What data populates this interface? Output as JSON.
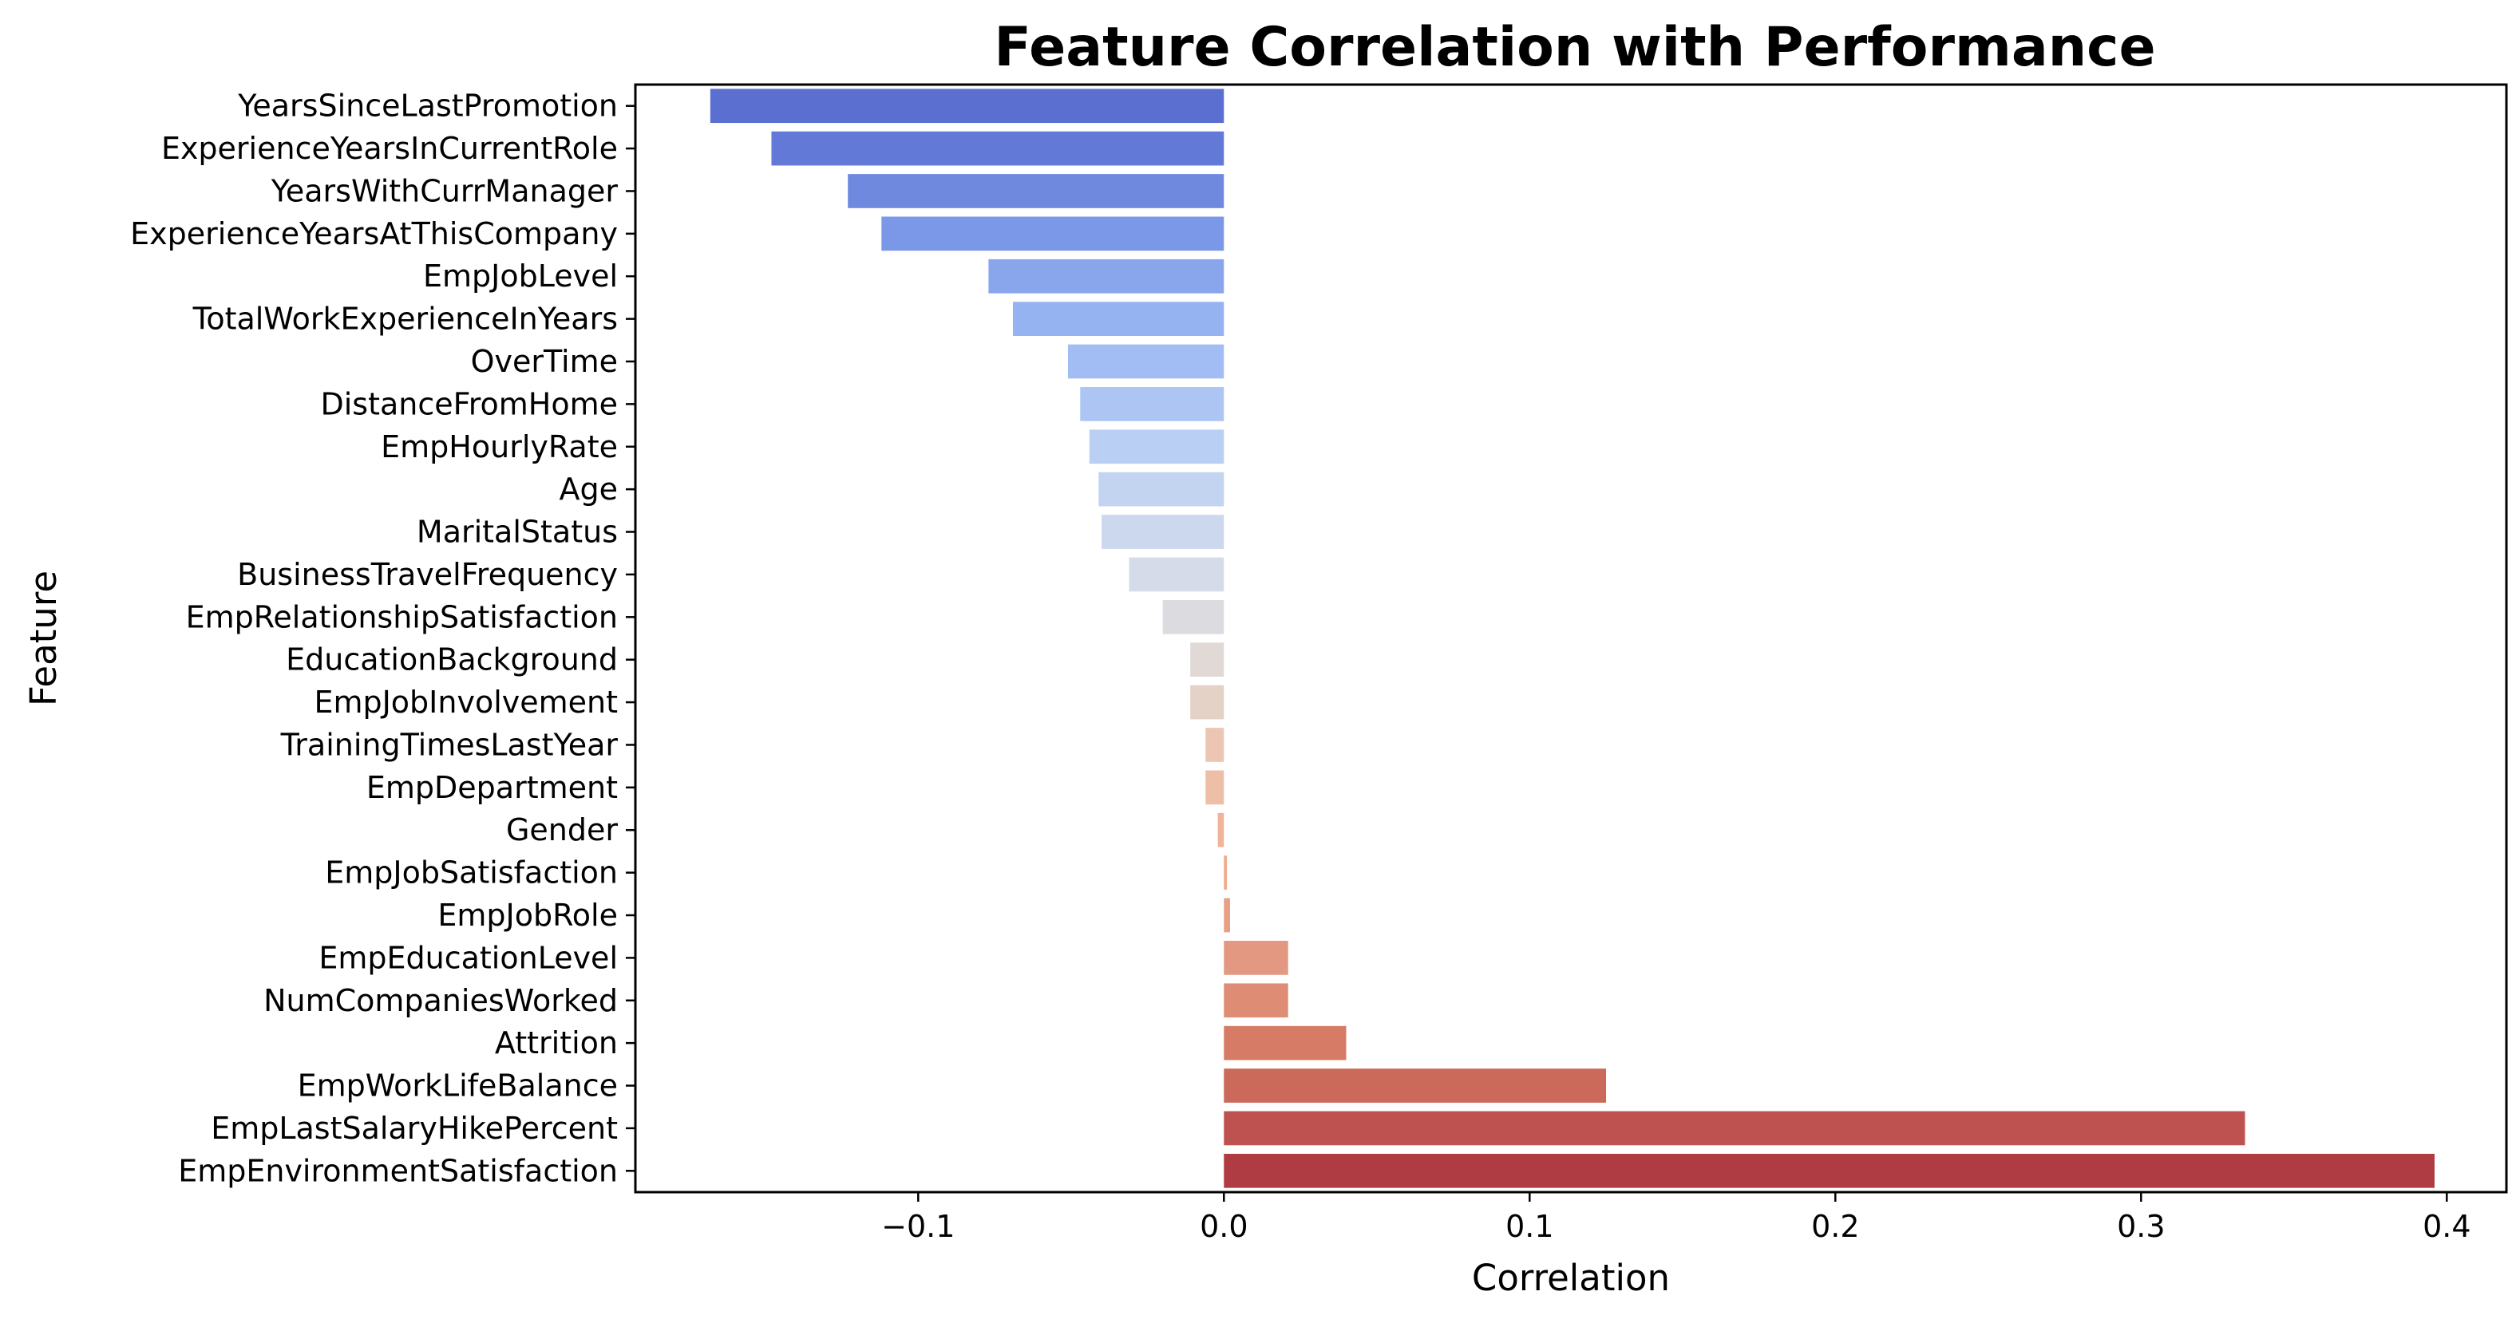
{
  "chart_data": {
    "type": "bar",
    "orientation": "horizontal",
    "title": "Feature Correlation with Performance",
    "xlabel": "Correlation",
    "ylabel": "Feature",
    "xlim": [
      -0.1925,
      0.4195
    ],
    "xticks": [
      -0.1,
      0.0,
      0.1,
      0.2,
      0.3,
      0.4
    ],
    "xtick_labels": [
      "−0.1",
      "0.0",
      "0.1",
      "0.2",
      "0.3",
      "0.4"
    ],
    "grid": false,
    "legend": "none",
    "colormap": "coolwarm",
    "categories": [
      "YearsSinceLastPromotion",
      "ExperienceYearsInCurrentRole",
      "YearsWithCurrManager",
      "ExperienceYearsAtThisCompany",
      "EmpJobLevel",
      "TotalWorkExperienceInYears",
      "OverTime",
      "DistanceFromHome",
      "EmpHourlyRate",
      "Age",
      "MaritalStatus",
      "BusinessTravelFrequency",
      "EmpRelationshipSatisfaction",
      "EducationBackground",
      "EmpJobInvolvement",
      "TrainingTimesLastYear",
      "EmpDepartment",
      "Gender",
      "EmpJobSatisfaction",
      "EmpJobRole",
      "EmpEducationLevel",
      "NumCompaniesWorked",
      "Attrition",
      "EmpWorkLifeBalance",
      "EmpLastSalaryHikePercent",
      "EmpEnvironmentSatisfaction"
    ],
    "values": [
      -0.168,
      -0.148,
      -0.123,
      -0.112,
      -0.077,
      -0.069,
      -0.051,
      -0.047,
      -0.044,
      -0.041,
      -0.04,
      -0.031,
      -0.02,
      -0.011,
      -0.011,
      -0.006,
      -0.006,
      -0.002,
      0.001,
      0.002,
      0.021,
      0.021,
      0.04,
      0.125,
      0.334,
      0.396
    ],
    "colors": [
      "#5a6fcf",
      "#6279d8",
      "#6f89df",
      "#7b97e7",
      "#89a6ed",
      "#95b2f1",
      "#a2bdf3",
      "#adc5f3",
      "#b9cff3",
      "#c3d4f0",
      "#ccd8ee",
      "#d5dbe8",
      "#dcdce0",
      "#e0d9d6",
      "#e5d2c7",
      "#ecc6b3",
      "#eebfa7",
      "#f0b498",
      "#efab8b",
      "#e8a084",
      "#e39882",
      "#de8c74",
      "#d67b66",
      "#cb695b",
      "#bd5250",
      "#b03c43"
    ]
  }
}
